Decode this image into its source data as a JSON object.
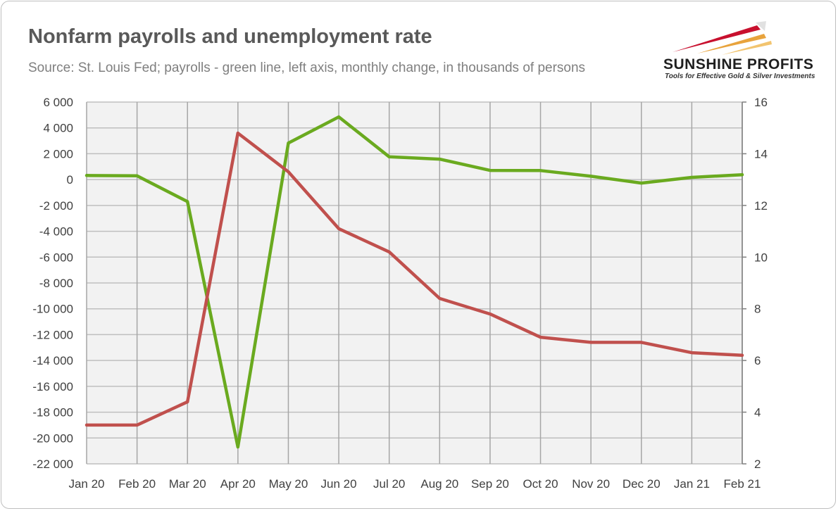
{
  "title": "Nonfarm payrolls and unemployment rate",
  "subtitle": "Source: St. Louis Fed; payrolls - green line, left axis, monthly change, in thousands of persons",
  "logo": {
    "name": "SUNSHINE PROFITS",
    "tagline": "Tools for Effective Gold & Silver Investments"
  },
  "chart_data": {
    "type": "line",
    "categories": [
      "Jan 20",
      "Feb 20",
      "Mar 20",
      "Apr 20",
      "May 20",
      "Jun 20",
      "Jul 20",
      "Aug 20",
      "Sep 20",
      "Oct 20",
      "Nov 20",
      "Dec 20",
      "Jan 21",
      "Feb 21"
    ],
    "left_axis": {
      "ylim": [
        -22000,
        6000
      ],
      "ticks": [
        6000,
        4000,
        2000,
        0,
        -2000,
        -4000,
        -6000,
        -8000,
        -10000,
        -12000,
        -14000,
        -16000,
        -18000,
        -20000,
        -22000
      ],
      "tick_labels": [
        "6 000",
        "4 000",
        "2 000",
        "0",
        "-2 000",
        "-4 000",
        "-6 000",
        "-8 000",
        "-10 000",
        "-12 000",
        "-14 000",
        "-16 000",
        "-18 000",
        "-20 000",
        "-22 000"
      ]
    },
    "right_axis": {
      "ylim": [
        2,
        16
      ],
      "ticks": [
        16,
        14,
        12,
        10,
        8,
        6,
        4,
        2
      ],
      "tick_labels": [
        "16",
        "14",
        "12",
        "10",
        "8",
        "6",
        "4",
        "2"
      ]
    },
    "series": [
      {
        "color": "#6aaa1f",
        "axis": "left",
        "values": [
          320,
          290,
          -1700,
          -20700,
          2830,
          4850,
          1760,
          1580,
          710,
          700,
          260,
          -270,
          170,
          380
        ]
      },
      {
        "color": "#c0504d",
        "axis": "right",
        "values": [
          3.5,
          3.5,
          4.4,
          14.8,
          13.3,
          11.1,
          10.2,
          8.4,
          7.8,
          6.9,
          6.7,
          6.7,
          6.3,
          6.2
        ]
      }
    ],
    "grid": true,
    "plot_background": "#f2f2f2"
  }
}
